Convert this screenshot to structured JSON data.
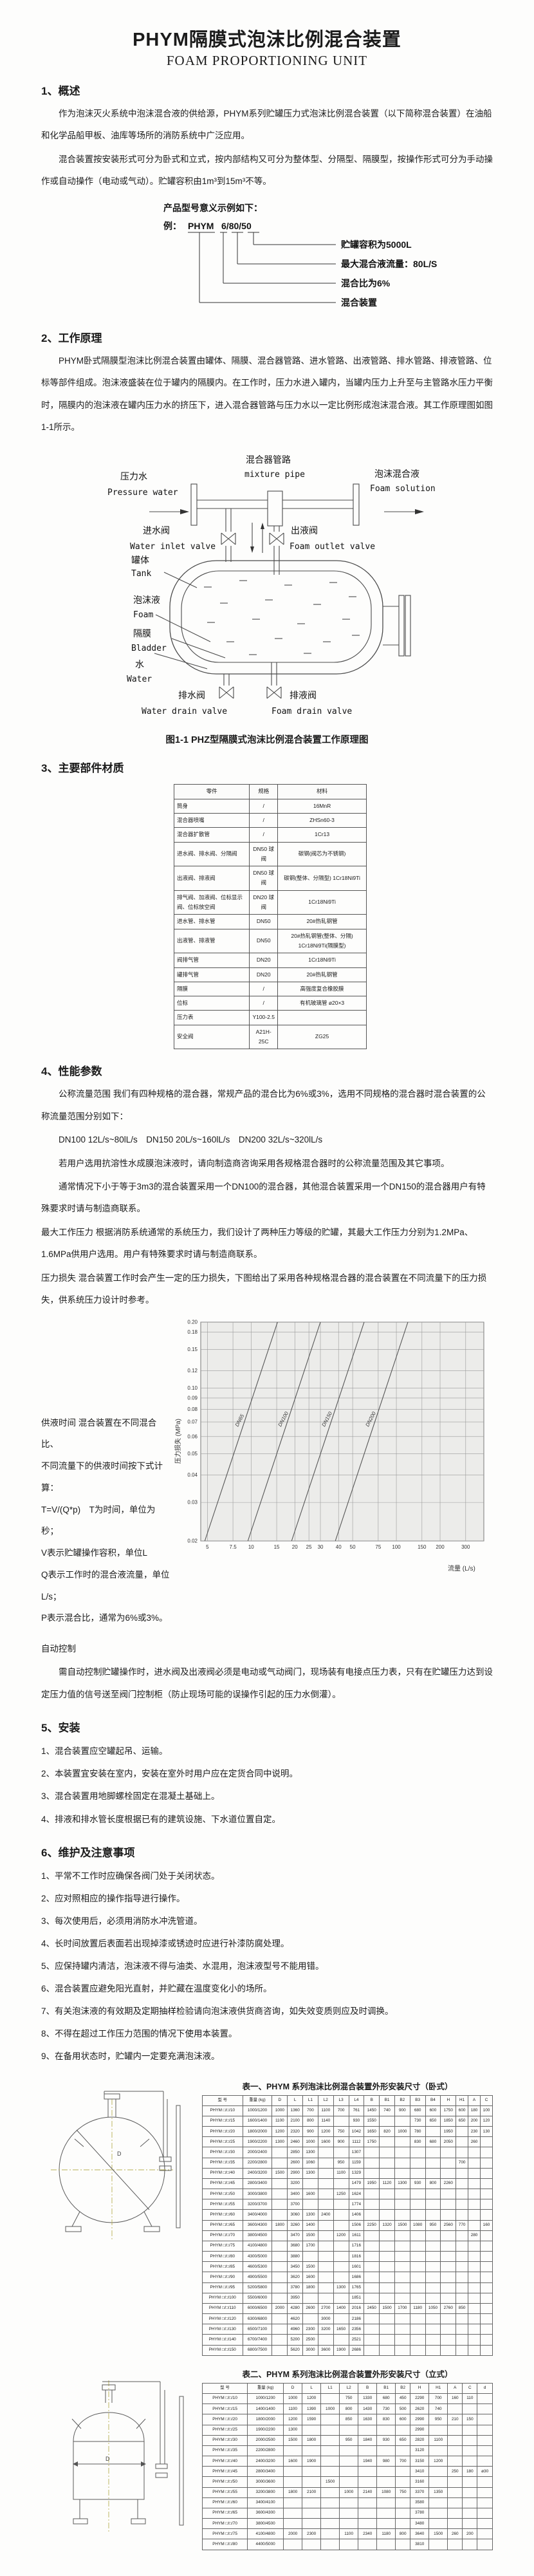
{
  "doc": {
    "title": "PHYM隔膜式泡沫比例混合装置",
    "subtitle": "FOAM PROPORTIONING UNIT"
  },
  "s1": {
    "heading": "1、概述",
    "p1": "作为泡沫灭火系统中泡沫混合液的供给源，PHYM系列贮罐压力式泡沫比例混合装置（以下简称混合装置）在油船和化学品船甲板、油库等场所的消防系统中广泛应用。",
    "p2": "混合装置按安装形式可分为卧式和立式，按内部结构又可分为整体型、分隔型、隔膜型，按操作形式可分为手动操作或自动操作（电动或气动）。贮罐容积由1m³到15m³不等。"
  },
  "model": {
    "intro": "产品型号意义示例如下：",
    "example_prefix": "例：",
    "part1": "PHYM",
    "part2": "6",
    "sep": "/",
    "part3": "80",
    "part4": "50",
    "label_volume": "贮罐容积为5000L",
    "label_flow": "最大混合液流量：80L/S",
    "label_ratio": "混合比为6%",
    "label_device": "混合装置"
  },
  "s2": {
    "heading": "2、工作原理",
    "p1": "PHYM卧式隔膜型泡沫比例混合装置由罐体、隔膜、混合器管路、进水管路、出液管路、排水管路、排液管路、位标等部件组成。泡沫液盛装在位于罐内的隔膜内。在工作时，压力水进入罐内，当罐内压力上升至与主管路水压力平衡时，隔膜内的泡沫液在罐内压力水的挤压下，进入混合器管路与压力水以一定比例形成泡沫混合液。其工作原理图如图1-1所示。"
  },
  "figure": {
    "caption": "图1-1 PHZ型隔膜式泡沫比例混合装置工作原理图",
    "labels": {
      "pressure_water_cn": "压力水",
      "pressure_water_en": "Pressure water",
      "mixture_pipe_cn": "混合器管路",
      "mixture_pipe_en": "mixture pipe",
      "foam_solution_cn": "泡沫混合液",
      "foam_solution_en": "Foam solution",
      "water_inlet_valve_cn": "进水阀",
      "water_inlet_valve_en": "Water inlet valve",
      "foam_outlet_valve_cn": "出液阀",
      "foam_outlet_valve_en": "Foam outlet valve",
      "tank_cn": "罐体",
      "tank_en": "Tank",
      "foam_cn": "泡沫液",
      "foam_en": "Foam",
      "bladder_cn": "隔膜",
      "bladder_en": "Bladder",
      "water_cn": "水",
      "water_en": "Water",
      "water_drain_cn": "排水阀",
      "water_drain_en": "Water drain valve",
      "foam_drain_cn": "排液阀",
      "foam_drain_en": "Foam drain valve"
    }
  },
  "s3": {
    "heading": "3、主要部件材质",
    "table": {
      "headers": [
        "零件",
        "规格",
        "材料"
      ],
      "rows": [
        [
          "筒身",
          "/",
          "16MnR"
        ],
        [
          "混合器喷嘴",
          "/",
          "ZHSn60-3"
        ],
        [
          "混合器扩散管",
          "/",
          "1Cr13"
        ],
        [
          "进水阀、排水阀、分隔阀",
          "DN50 球阀",
          "碳钢(阀芯为不锈钢)"
        ],
        [
          "出液阀、排液阀",
          "DN50 球阀",
          "碳钢(整体、分隔型) 1Cr18Ni9Ti"
        ],
        [
          "排气阀、加液阀、位标显示阀、位标放空阀",
          "DN20 球阀",
          "1Cr18Ni9Ti"
        ],
        [
          "进水管、排水管",
          "DN50",
          "20#热轧钢管"
        ],
        [
          "出液管、排液管",
          "DN50",
          "20#热轧钢管(整体、分隔) 1Cr18Ni9Ti(隔膜型)"
        ],
        [
          "阀排气管",
          "DN20",
          "1Cr18Ni9Ti"
        ],
        [
          "罐排气管",
          "DN20",
          "20#热轧钢管"
        ],
        [
          "隔膜",
          "/",
          "高强度复合橡胶膜"
        ],
        [
          "位标",
          "/",
          "有机玻璃管 ø20×3"
        ],
        [
          "压力表",
          "Y100-2.5",
          ""
        ],
        [
          "安全阀",
          "A21H-25C",
          "ZG25"
        ]
      ]
    }
  },
  "s4": {
    "heading": "4、性能参数",
    "p1": "公称流量范围  我们有四种规格的混合器，常规产品的混合比为6%或3%，选用不同规格的混合器时混合装置的公称流量范围分别如下：",
    "p2": "DN100 12L/s~80lL/s　DN150 20L/s~160lL/s　DN200 32L/s~320lL/s",
    "p3": "若用户选用抗溶性水成膜泡沫液时，请向制造商咨询采用各规格混合器时的公称流量范围及其它事项。",
    "p4": "通常情况下小于等于3m3的混合装置采用一个DN100的混合器，其他混合装置采用一个DN150的混合器用户有特殊要求时请与制造商联系。",
    "p5": "最大工作压力  根据消防系统通常的系统压力，我们设计了两种压力等级的贮罐，其最大工作压力分别为1.2MPa、1.6MPa供用户选用。用户有特殊要求时请与制造商联系。",
    "p6": "压力损失  混合装置工作时会产生一定的压力损失，下图给出了采用各种规格混合器的混合装置在不同流量下的压力损失，供系统压力设计时参考。",
    "supply_time": [
      "供液时间  混合装置在不同混合比、",
      "不同流量下的供液时间按下式计算：",
      "T=V/(Q*p)　T为时间，单位为秒；",
      "V表示贮罐操作容积，单位L",
      "Q表示工作时的混合液流量，单位L/s；",
      "P表示混合比，通常为6%或3%。"
    ],
    "auto_heading": "自动控制",
    "auto_p": "需自动控制贮罐操作时，进水阀及出液阀必须是电动或气动阀门，现场装有电接点压力表，只有在贮罐压力达到设定压力值的信号送至阀门控制柜（防止现场可能的误操作引起的压力水倒灌）。"
  },
  "chart_data": {
    "type": "line",
    "title": "",
    "xlabel": "流量 (L/s)",
    "ylabel": "压力损失 (MPa)",
    "x_scale": "log",
    "y_scale": "log",
    "xlim": [
      4.5,
      400
    ],
    "ylim": [
      0.02,
      0.2
    ],
    "yticks": [
      "0.20",
      "0.18",
      "0.15",
      "0.12",
      "0.10",
      "0.09",
      "0.08",
      "0.07",
      "0.06",
      "0.05",
      "0.04",
      "0.03",
      "0.02"
    ],
    "xticks": [
      "5",
      "7.5",
      "10",
      "15",
      "20",
      "25",
      "30",
      "40",
      "50",
      "75",
      "100",
      "150",
      "200",
      "300"
    ],
    "grid": true,
    "legend_position": "on-line",
    "series": [
      {
        "name": "DN65",
        "x": [
          4.8,
          15.2
        ],
        "y": [
          0.02,
          0.2
        ]
      },
      {
        "name": "DN100",
        "x": [
          9.5,
          30
        ],
        "y": [
          0.02,
          0.2
        ]
      },
      {
        "name": "DN150",
        "x": [
          19,
          60
        ],
        "y": [
          0.02,
          0.2
        ]
      },
      {
        "name": "DN200",
        "x": [
          38,
          120
        ],
        "y": [
          0.02,
          0.2
        ]
      }
    ]
  },
  "s5": {
    "heading": "5、安装",
    "items": [
      "1、混合装置应空罐起吊、运输。",
      "2、本装置宜安装在室内，安装在室外时用户应在定货合同中说明。",
      "3、混合装置用地脚螺栓固定在混凝土基础上。",
      "4、排液和排水管长度根据已有的建筑设施、下水道位置自定。"
    ]
  },
  "s6": {
    "heading": "6、维护及注意事项",
    "items": [
      "1、平常不工作时应确保各阀门处于关闭状态。",
      "2、应对照相应的操作指导进行操作。",
      "3、每次使用后，必须用消防水冲洗管道。",
      "4、长时间放置后表面若出现掉漆或锈迹时应进行补漆防腐处理。",
      "5、应保持罐内清洁，泡沫液不得与油类、水混用，泡沫液型号不能用错。",
      "6、混合装置应避免阳光直射，并贮藏在温度变化小的场所。",
      "7、有关泡沫液的有效期及定期抽样检验请向泡沫液供货商咨询，如失效变质则应及时调换。",
      "8、不得在超过工作压力范围的情况下使用本装置。",
      "9、在备用状态时，贮罐内一定要充满泡沫液。"
    ]
  },
  "t1": {
    "caption": "表一、PHYM 系列泡沫比例混合装置外形安装尺寸（卧式）",
    "dim_label": "D",
    "headers": [
      "型  号",
      "重量 (kg)",
      "D",
      "L",
      "L1",
      "L2",
      "L3",
      "L4",
      "B",
      "B1",
      "B2",
      "B3",
      "B4",
      "H",
      "H1",
      "A",
      "C"
    ],
    "rows": [
      [
        "PHYM □/□/10",
        "1000/1200",
        "1000",
        "1360",
        "700",
        "1100",
        "700",
        "761",
        "1450",
        "740",
        "900",
        "680",
        "600",
        "1750",
        "600",
        "180",
        "100"
      ],
      [
        "PHYM □/□/15",
        "1600/1400",
        "1100",
        "2100",
        "800",
        "1140",
        "",
        "930",
        "1550",
        "",
        "",
        "730",
        "650",
        "1850",
        "650",
        "200",
        "120"
      ],
      [
        "PHYM □/□/20",
        "1800/2000",
        "1200",
        "2320",
        "900",
        "1200",
        "750",
        "1042",
        "1650",
        "820",
        "1000",
        "780",
        "",
        "1950",
        "",
        "230",
        "130"
      ],
      [
        "PHYM □/□/25",
        "1900/2200",
        "1300",
        "2460",
        "1000",
        "1600",
        "900",
        "1112",
        "1750",
        "",
        "",
        "830",
        "680",
        "2050",
        "",
        "260",
        ""
      ],
      [
        "PHYM □/□/30",
        "2000/2400",
        "",
        "2850",
        "1300",
        "",
        "",
        "1307",
        "",
        "",
        "",
        "",
        "",
        "",
        "",
        "",
        ""
      ],
      [
        "PHYM □/□/35",
        "2200/2800",
        "",
        "2600",
        "1060",
        "",
        "950",
        "1159",
        "",
        "",
        "",
        "",
        "",
        "",
        "700",
        "",
        ""
      ],
      [
        "PHYM □/□/40",
        "2400/3200",
        "1500",
        "2900",
        "1300",
        "",
        "1100",
        "1329",
        "",
        "",
        "",
        "",
        "",
        "",
        "",
        "",
        ""
      ],
      [
        "PHYM □/□/45",
        "2800/3400",
        "",
        "3200",
        "",
        "",
        "",
        "1479",
        "1950",
        "1120",
        "1300",
        "930",
        "800",
        "2260",
        "",
        "",
        ""
      ],
      [
        "PHYM □/□/50",
        "3000/3800",
        "",
        "3400",
        "1600",
        "",
        "1250",
        "1624",
        "",
        "",
        "",
        "",
        "",
        "",
        "",
        "",
        ""
      ],
      [
        "PHYM □/□/55",
        "3200/3700",
        "",
        "3700",
        "",
        "",
        "",
        "1774",
        "",
        "",
        "",
        "",
        "",
        "",
        "",
        "",
        ""
      ],
      [
        "PHYM □/□/60",
        "3400/4000",
        "",
        "3060",
        "1300",
        "2400",
        "",
        "1406",
        "",
        "",
        "",
        "",
        "",
        "",
        "",
        "",
        ""
      ],
      [
        "PHYM □/□/65",
        "3600/4300",
        "1800",
        "3260",
        "1400",
        "",
        "",
        "1506",
        "2250",
        "1320",
        "1500",
        "1080",
        "950",
        "2560",
        "770",
        "",
        "160"
      ],
      [
        "PHYM □/□/70",
        "3800/4500",
        "",
        "3470",
        "1500",
        "",
        "1200",
        "1611",
        "",
        "",
        "",
        "",
        "",
        "",
        "",
        "280",
        ""
      ],
      [
        "PHYM □/□/75",
        "4100/4800",
        "",
        "3680",
        "1700",
        "",
        "",
        "1716",
        "",
        "",
        "",
        "",
        "",
        "",
        "",
        "",
        ""
      ],
      [
        "PHYM □/□/80",
        "4300/5000",
        "",
        "3880",
        "",
        "",
        "",
        "1816",
        "",
        "",
        "",
        "",
        "",
        "",
        "",
        "",
        ""
      ],
      [
        "PHYM □/□/85",
        "4600/5300",
        "",
        "3450",
        "1500",
        "",
        "",
        "1601",
        "",
        "",
        "",
        "",
        "",
        "",
        "",
        "",
        ""
      ],
      [
        "PHYM □/□/90",
        "4900/5500",
        "",
        "3620",
        "1600",
        "",
        "",
        "1686",
        "",
        "",
        "",
        "",
        "",
        "",
        "",
        "",
        ""
      ],
      [
        "PHYM □/□/95",
        "5200/5800",
        "",
        "3780",
        "1800",
        "",
        "1300",
        "1765",
        "",
        "",
        "",
        "",
        "",
        "",
        "",
        "",
        ""
      ],
      [
        "PHYM □/□/100",
        "5500/6000",
        "",
        "3950",
        "",
        "",
        "",
        "1851",
        "",
        "",
        "",
        "",
        "",
        "",
        "",
        "",
        ""
      ],
      [
        "PHYM □/□/110",
        "6000/6500",
        "2000",
        "4280",
        "2600",
        "2700",
        "1400",
        "2016",
        "2450",
        "1500",
        "1700",
        "1180",
        "1050",
        "2760",
        "850",
        "",
        ""
      ],
      [
        "PHYM □/□/120",
        "6300/6800",
        "",
        "4620",
        "",
        "3000",
        "",
        "2186",
        "",
        "",
        "",
        "",
        "",
        "",
        "",
        "",
        ""
      ],
      [
        "PHYM □/□/130",
        "6500/7100",
        "",
        "4960",
        "2300",
        "3200",
        "1650",
        "2356",
        "",
        "",
        "",
        "",
        "",
        "",
        "",
        "",
        ""
      ],
      [
        "PHYM □/□/140",
        "6700/7400",
        "",
        "5200",
        "2500",
        "",
        "",
        "2521",
        "",
        "",
        "",
        "",
        "",
        "",
        "",
        "",
        ""
      ],
      [
        "PHYM □/□/150",
        "6800/7500",
        "",
        "5620",
        "3000",
        "3600",
        "1900",
        "2686",
        "",
        "",
        "",
        "",
        "",
        "",
        "",
        "",
        ""
      ]
    ]
  },
  "t2": {
    "caption": "表二、PHYM 系列泡沫比例混合装置外形安装尺寸（立式）",
    "dim_label": "D",
    "headers": [
      "型  号",
      "重量 (kg)",
      "D",
      "L",
      "L1",
      "L2",
      "B",
      "B1",
      "B2",
      "H",
      "H1",
      "A",
      "C",
      "d"
    ],
    "rows": [
      [
        "PHYM □/□/10",
        "1000/1200",
        "1000",
        "1200",
        "",
        "750",
        "1330",
        "680",
        "450",
        "2290",
        "700",
        "160",
        "110",
        ""
      ],
      [
        "PHYM □/□/15",
        "1400/1400",
        "1100",
        "1390",
        "1000",
        "800",
        "1430",
        "730",
        "500",
        "2620",
        "740",
        "",
        "",
        ""
      ],
      [
        "PHYM □/□/20",
        "1800/2000",
        "1200",
        "1590",
        "",
        "850",
        "1630",
        "830",
        "600",
        "2990",
        "950",
        "210",
        "150",
        ""
      ],
      [
        "PHYM □/□/25",
        "1900/2200",
        "1300",
        "",
        "",
        "",
        "",
        "",
        "",
        "2990",
        "",
        "",
        "",
        ""
      ],
      [
        "PHYM □/□/30",
        "2000/2500",
        "1500",
        "1800",
        "",
        "950",
        "1840",
        "930",
        "650",
        "2820",
        "1100",
        "",
        "",
        ""
      ],
      [
        "PHYM □/□/35",
        "2200/2800",
        "",
        "",
        "",
        "",
        "",
        "",
        "",
        "3120",
        "",
        "",
        "",
        ""
      ],
      [
        "PHYM □/□/40",
        "2400/3200",
        "1600",
        "1900",
        "",
        "",
        "1940",
        "980",
        "700",
        "3150",
        "1200",
        "",
        "",
        ""
      ],
      [
        "PHYM □/□/45",
        "2800/3400",
        "",
        "",
        "",
        "",
        "",
        "",
        "",
        "3410",
        "",
        "250",
        "180",
        "ø30"
      ],
      [
        "PHYM □/□/50",
        "3000/3600",
        "",
        "",
        "1500",
        "",
        "",
        "",
        "",
        "3160",
        "",
        "",
        "",
        ""
      ],
      [
        "PHYM □/□/55",
        "3200/3800",
        "1800",
        "2100",
        "",
        "1000",
        "2140",
        "1080",
        "750",
        "3370",
        "1350",
        "",
        "",
        ""
      ],
      [
        "PHYM □/□/60",
        "3400/4100",
        "",
        "",
        "",
        "",
        "",
        "",
        "",
        "3580",
        "",
        "",
        "",
        ""
      ],
      [
        "PHYM □/□/65",
        "3600/4300",
        "",
        "",
        "",
        "",
        "",
        "",
        "",
        "3780",
        "",
        "",
        "",
        ""
      ],
      [
        "PHYM □/□/70",
        "3800/4500",
        "",
        "",
        "",
        "",
        "",
        "",
        "",
        "3480",
        "",
        "",
        "",
        ""
      ],
      [
        "PHYM □/□/75",
        "4100/4800",
        "2000",
        "2300",
        "",
        "1100",
        "2340",
        "1180",
        "800",
        "3640",
        "1500",
        "260",
        "200",
        ""
      ],
      [
        "PHYM □/□/80",
        "4400/5000",
        "",
        "",
        "",
        "",
        "",
        "",
        "",
        "3810",
        "",
        "",
        "",
        ""
      ]
    ]
  }
}
